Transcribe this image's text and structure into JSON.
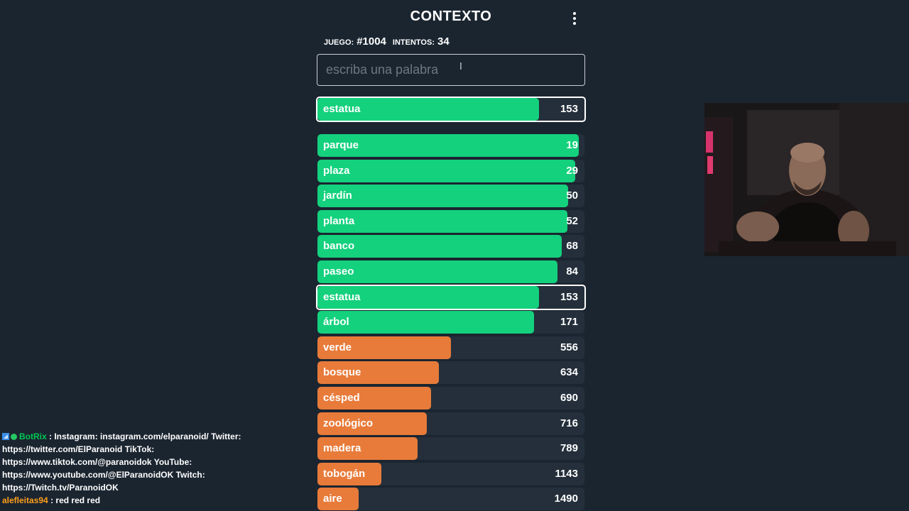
{
  "header": {
    "title": "CONTEXTO",
    "menu_icon": "kebab-menu-icon"
  },
  "stats": {
    "game_label": "JUEGO:",
    "game_value": "#1004",
    "attempts_label": "INTENTOS:",
    "attempts_value": "34"
  },
  "input": {
    "placeholder": "escriba una palabra",
    "value": ""
  },
  "colors": {
    "green": "#14d17d",
    "orange": "#e87b3a",
    "track": "#242f3b",
    "background": "#1b2530"
  },
  "last_guess": {
    "word": "estatua",
    "rank": "153",
    "fill_fraction": 0.83,
    "color": "green"
  },
  "guesses": [
    {
      "word": "parque",
      "rank": "19",
      "fill_fraction": 0.98,
      "color": "green"
    },
    {
      "word": "plaza",
      "rank": "29",
      "fill_fraction": 0.965,
      "color": "green"
    },
    {
      "word": "jardín",
      "rank": "50",
      "fill_fraction": 0.94,
      "color": "green"
    },
    {
      "word": "planta",
      "rank": "52",
      "fill_fraction": 0.935,
      "color": "green"
    },
    {
      "word": "banco",
      "rank": "68",
      "fill_fraction": 0.915,
      "color": "green"
    },
    {
      "word": "paseo",
      "rank": "84",
      "fill_fraction": 0.9,
      "color": "green"
    },
    {
      "word": "estatua",
      "rank": "153",
      "fill_fraction": 0.83,
      "color": "green",
      "highlight": true
    },
    {
      "word": "árbol",
      "rank": "171",
      "fill_fraction": 0.81,
      "color": "green"
    },
    {
      "word": "verde",
      "rank": "556",
      "fill_fraction": 0.5,
      "color": "orange"
    },
    {
      "word": "bosque",
      "rank": "634",
      "fill_fraction": 0.455,
      "color": "orange"
    },
    {
      "word": "césped",
      "rank": "690",
      "fill_fraction": 0.425,
      "color": "orange"
    },
    {
      "word": "zoológico",
      "rank": "716",
      "fill_fraction": 0.41,
      "color": "orange"
    },
    {
      "word": "madera",
      "rank": "789",
      "fill_fraction": 0.375,
      "color": "orange"
    },
    {
      "word": "tobogán",
      "rank": "1143",
      "fill_fraction": 0.24,
      "color": "orange"
    },
    {
      "word": "aire",
      "rank": "1490",
      "fill_fraction": 0.155,
      "color": "orange"
    }
  ],
  "chat": {
    "messages": [
      {
        "user": "BotRix",
        "text": ": Instagram: instagram.com/elparanoid/ Twitter: https://twitter.com/ElParanoid TikTok: https://www.tiktok.com/@paranoidok YouTube: https://www.youtube.com/@ElParanoidOK Twitch: https://Twitch.tv/ParanoidOK",
        "badges": [
          "moderator-badge-icon",
          "verified-check-icon"
        ]
      },
      {
        "user": "alefleitas94",
        "text": ": red red red",
        "badges": []
      }
    ]
  },
  "webcam": {
    "label": "streamer-webcam-overlay"
  }
}
